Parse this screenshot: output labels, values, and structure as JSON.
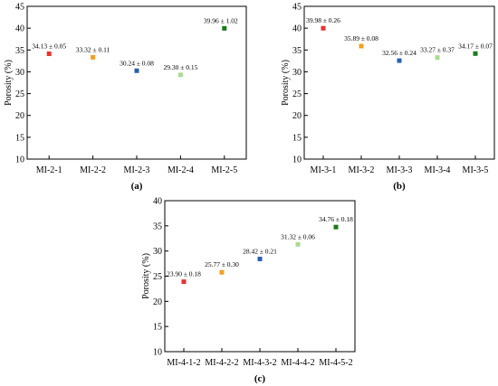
{
  "chart_data": [
    {
      "type": "scatter",
      "panel_label": "(a)",
      "ylabel": "Porosity (%)",
      "ylim": [
        10,
        45
      ],
      "yticks": [
        "10",
        "15",
        "20",
        "25",
        "30",
        "35",
        "40",
        "45"
      ],
      "categories": [
        "MI-2-1",
        "MI-2-2",
        "MI-2-3",
        "MI-2-4",
        "MI-2-5"
      ],
      "values": [
        34.13,
        33.32,
        30.24,
        29.3,
        39.96
      ],
      "data_labels": [
        "34.13 ± 0.05",
        "33.32 ± 0.11",
        "30.24 ± 0.08",
        "29.30 ± 0.15",
        "39.96 ± 1.02"
      ],
      "colors": [
        "#e8322e",
        "#f0a020",
        "#2a5fb5",
        "#a9dc90",
        "#1a7a1a"
      ]
    },
    {
      "type": "scatter",
      "panel_label": "(b)",
      "ylabel": "Porosity (%)",
      "ylim": [
        10,
        45
      ],
      "yticks": [
        "10",
        "15",
        "20",
        "25",
        "30",
        "35",
        "40",
        "45"
      ],
      "categories": [
        "MI-3-1",
        "MI-3-2",
        "MI-3-3",
        "MI-3-4",
        "MI-3-5"
      ],
      "values": [
        39.98,
        35.89,
        32.56,
        33.27,
        34.17
      ],
      "data_labels": [
        "39.98 ± 0.26",
        "35.89 ± 0.08",
        "32.56 ± 0.24",
        "33.27 ± 0.37",
        "34.17 ± 0.07"
      ],
      "colors": [
        "#e8322e",
        "#f0a020",
        "#2a5fb5",
        "#a9dc90",
        "#1a7a1a"
      ]
    },
    {
      "type": "scatter",
      "panel_label": "(c)",
      "ylabel": "Porosity (%)",
      "ylim": [
        10,
        40
      ],
      "yticks": [
        "10",
        "15",
        "20",
        "25",
        "30",
        "35",
        "40"
      ],
      "categories": [
        "MI-4-1-2",
        "MI-4-2-2",
        "MI-4-3-2",
        "MI-4-4-2",
        "MI-4-5-2"
      ],
      "values": [
        23.9,
        25.77,
        28.42,
        31.32,
        34.76
      ],
      "data_labels": [
        "23.90 ± 0.18",
        "25.77 ± 0.30",
        "28.42 ± 0.21",
        "31.32 ± 0.06",
        "34.76 ± 0.18"
      ],
      "colors": [
        "#e8322e",
        "#f0a020",
        "#2a5fb5",
        "#a9dc90",
        "#1a7a1a"
      ]
    }
  ]
}
